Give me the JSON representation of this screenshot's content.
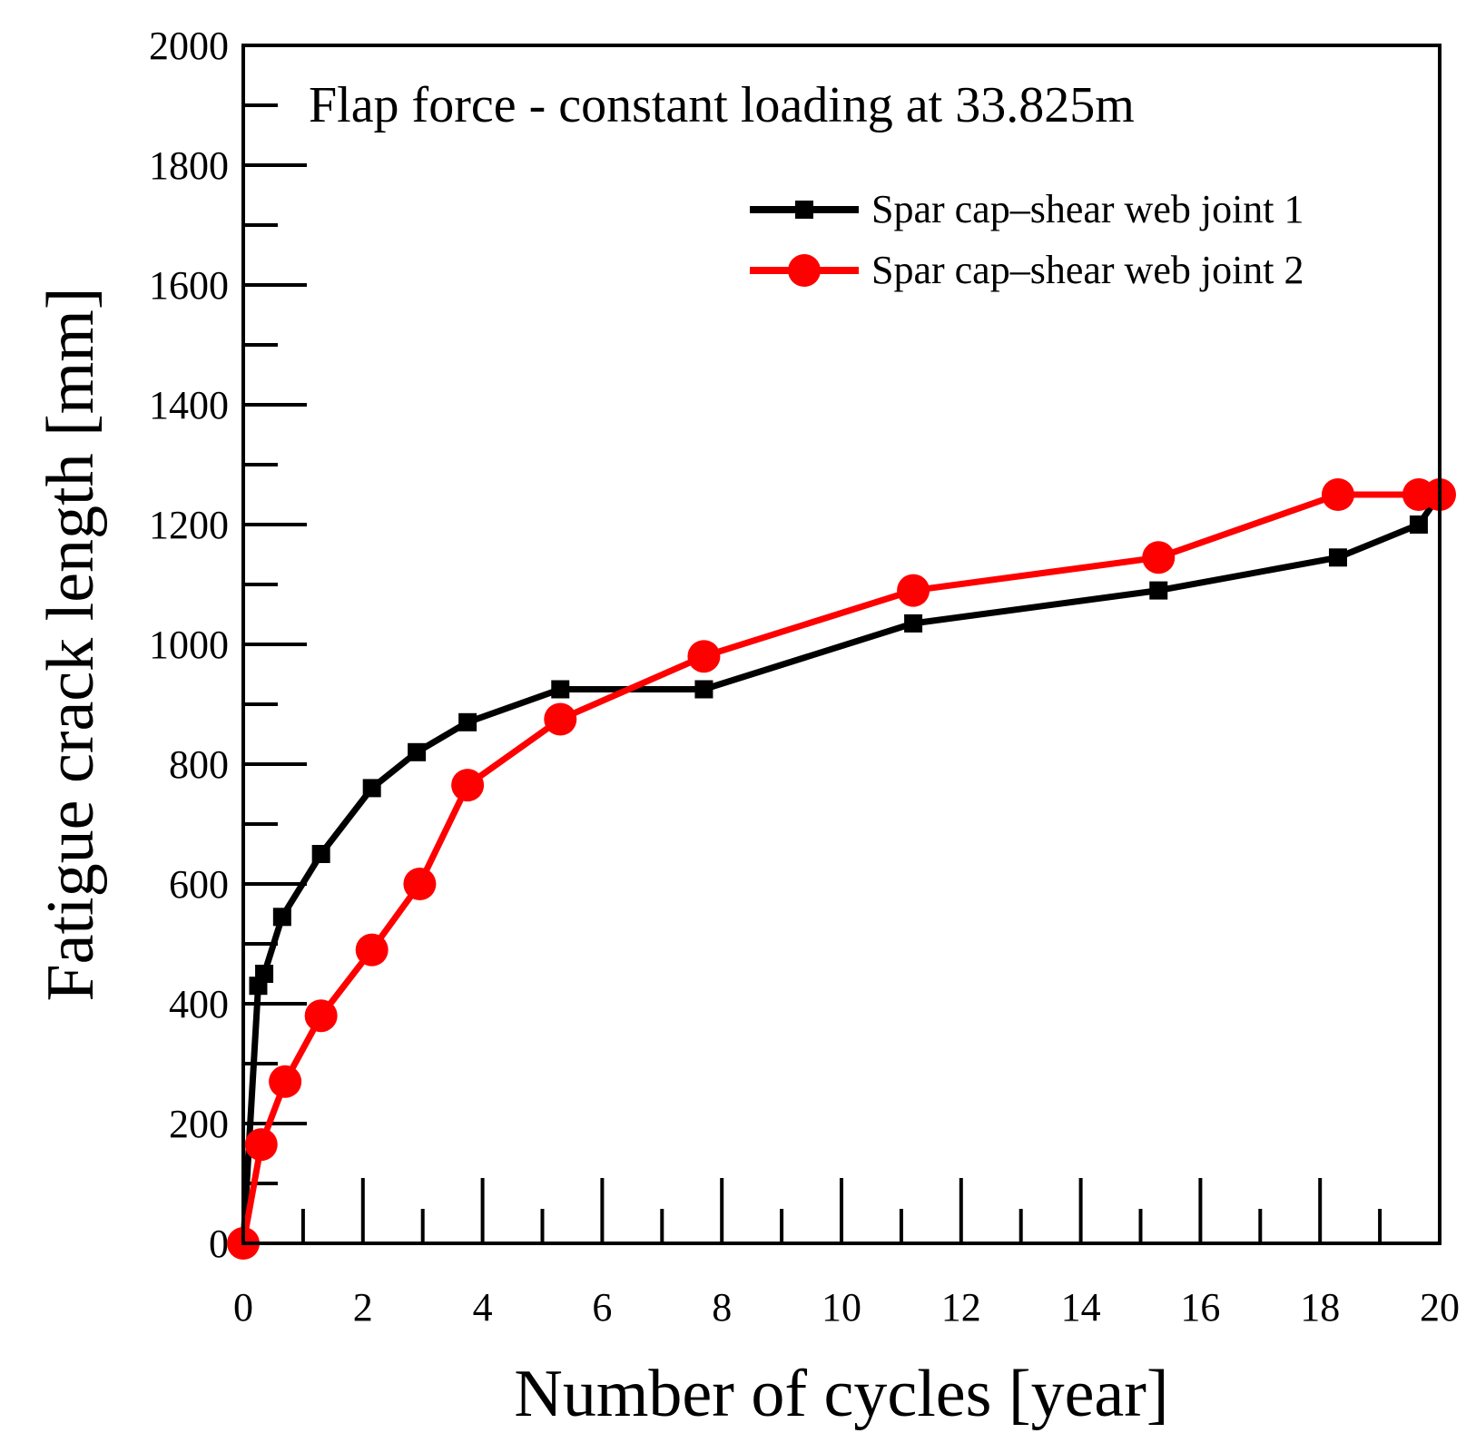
{
  "chart_data": {
    "type": "line",
    "title": "Flap force - constant loading at 33.825m",
    "xlabel": "Number of cycles [year]",
    "ylabel": "Fatigue crack length [mm]",
    "xlim": [
      0,
      20
    ],
    "ylim": [
      0,
      2000
    ],
    "xticks": [
      0,
      2,
      4,
      6,
      8,
      10,
      12,
      14,
      16,
      18,
      20
    ],
    "yticks": [
      0,
      200,
      400,
      600,
      800,
      1000,
      1200,
      1400,
      1600,
      1800,
      2000
    ],
    "x_minor_step": 1,
    "y_minor_step": 100,
    "grid": false,
    "legend_position": "top-right",
    "series": [
      {
        "name": "Spar cap–shear web joint 1",
        "color": "#000000",
        "marker": "square",
        "x": [
          0,
          0.25,
          0.35,
          0.65,
          1.3,
          2.15,
          2.9,
          3.75,
          5.3,
          7.7,
          11.2,
          15.3,
          18.3,
          19.65,
          20
        ],
        "y": [
          0,
          430,
          450,
          545,
          650,
          760,
          820,
          870,
          925,
          925,
          1035,
          1090,
          1145,
          1200,
          1250
        ]
      },
      {
        "name": "Spar cap–shear web joint 2",
        "color": "#ff0000",
        "marker": "circle",
        "x": [
          0,
          0.3,
          0.7,
          1.3,
          2.15,
          2.95,
          3.75,
          5.3,
          7.7,
          11.2,
          15.3,
          18.3,
          19.65,
          20
        ],
        "y": [
          0,
          165,
          270,
          380,
          490,
          600,
          765,
          875,
          980,
          1090,
          1145,
          1250,
          1250,
          1250
        ]
      }
    ]
  }
}
